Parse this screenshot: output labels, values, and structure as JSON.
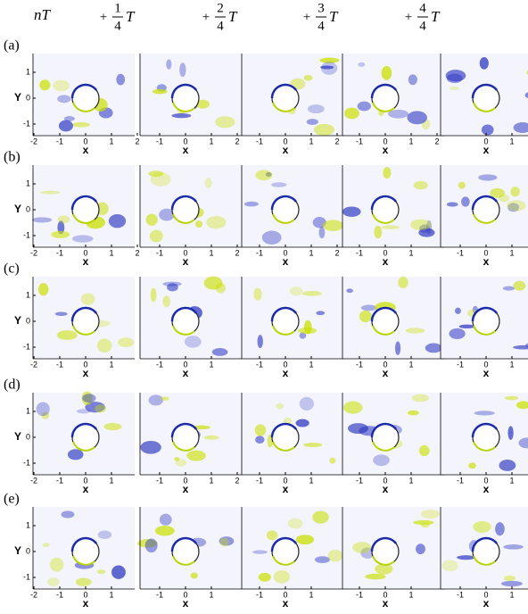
{
  "headers": [
    {
      "text": "nT"
    },
    {
      "sign": "+",
      "numerator": "1",
      "denominator": "4",
      "symbol": "T"
    },
    {
      "sign": "+",
      "numerator": "2",
      "denominator": "4",
      "symbol": "T"
    },
    {
      "sign": "+",
      "numerator": "3",
      "denominator": "4",
      "symbol": "T"
    },
    {
      "sign": "+",
      "numerator": "4",
      "denominator": "4",
      "symbol": "T"
    }
  ],
  "y_axis": {
    "label": "Y",
    "ticks": [
      "1",
      "0",
      "-1"
    ]
  },
  "x_label": "x",
  "rows": [
    {
      "label": "(a)",
      "panels": [
        {
          "xticks": [
            "-2",
            "-1",
            "0",
            "1",
            "2"
          ]
        },
        {
          "xticks": [
            "-1",
            "0",
            "1",
            "2"
          ]
        },
        {
          "xticks": [
            "-1",
            "0",
            "1",
            "2"
          ]
        },
        {
          "xticks": [
            "-1",
            "0",
            "1",
            "2"
          ]
        },
        {
          "xticks": [
            "0",
            "1"
          ]
        }
      ]
    },
    {
      "label": "(b)",
      "panels": [
        {
          "xticks": [
            "-2",
            "-1",
            "0",
            "1",
            "2"
          ]
        },
        {
          "xticks": [
            "-1",
            "0",
            "1",
            "2"
          ]
        },
        {
          "xticks": [
            "-1",
            "0",
            "1",
            "2"
          ]
        },
        {
          "xticks": [
            "-1",
            "0",
            "1"
          ]
        },
        {
          "xticks": [
            "-1",
            "0",
            "1"
          ]
        }
      ]
    },
    {
      "label": "(c)",
      "panels": [
        {
          "xticks": [
            "-2",
            "-1",
            "0",
            "1"
          ]
        },
        {
          "xticks": [
            "-1",
            "0",
            "1"
          ]
        },
        {
          "xticks": [
            "-1",
            "0",
            "1"
          ]
        },
        {
          "xticks": [
            "-1",
            "0",
            "1"
          ]
        },
        {
          "xticks": [
            "-1",
            "0",
            "1"
          ]
        }
      ]
    },
    {
      "label": "(d)",
      "panels": [
        {
          "xticks": [
            "-2",
            "-1",
            "0",
            "1"
          ]
        },
        {
          "xticks": [
            "-1",
            "0",
            "1",
            "2"
          ]
        },
        {
          "xticks": [
            "-1",
            "0",
            "1"
          ]
        },
        {
          "xticks": [
            "-1",
            "0",
            "1"
          ]
        },
        {
          "xticks": [
            "-1",
            "0",
            "1"
          ]
        }
      ]
    },
    {
      "label": "(e)",
      "panels": [
        {
          "xticks": [
            "-2",
            "-1",
            "0",
            "1"
          ]
        },
        {
          "xticks": [
            "-1",
            "0",
            "1"
          ]
        },
        {
          "xticks": [
            "-1",
            "0",
            "1"
          ]
        },
        {
          "xticks": [
            "-1",
            "0",
            "1"
          ]
        },
        {
          "xticks": [
            "-1",
            "0",
            "1"
          ]
        }
      ]
    }
  ]
}
